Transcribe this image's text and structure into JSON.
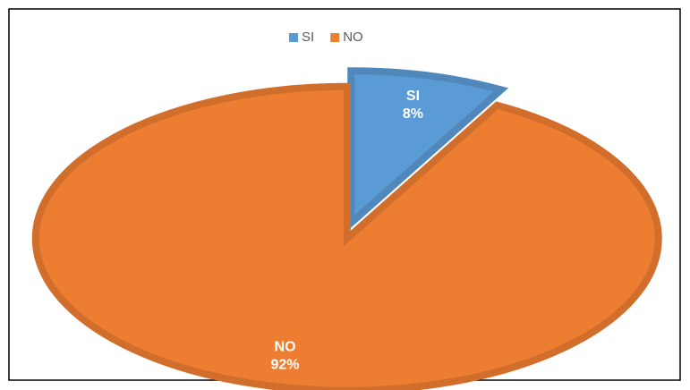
{
  "chart_data": {
    "type": "pie",
    "categories": [
      "SI",
      "NO"
    ],
    "values": [
      8,
      92
    ],
    "value_labels": [
      "8%",
      "92%"
    ],
    "colors": [
      "#5b9bd5",
      "#ed7d31"
    ],
    "legend": "top"
  }
}
